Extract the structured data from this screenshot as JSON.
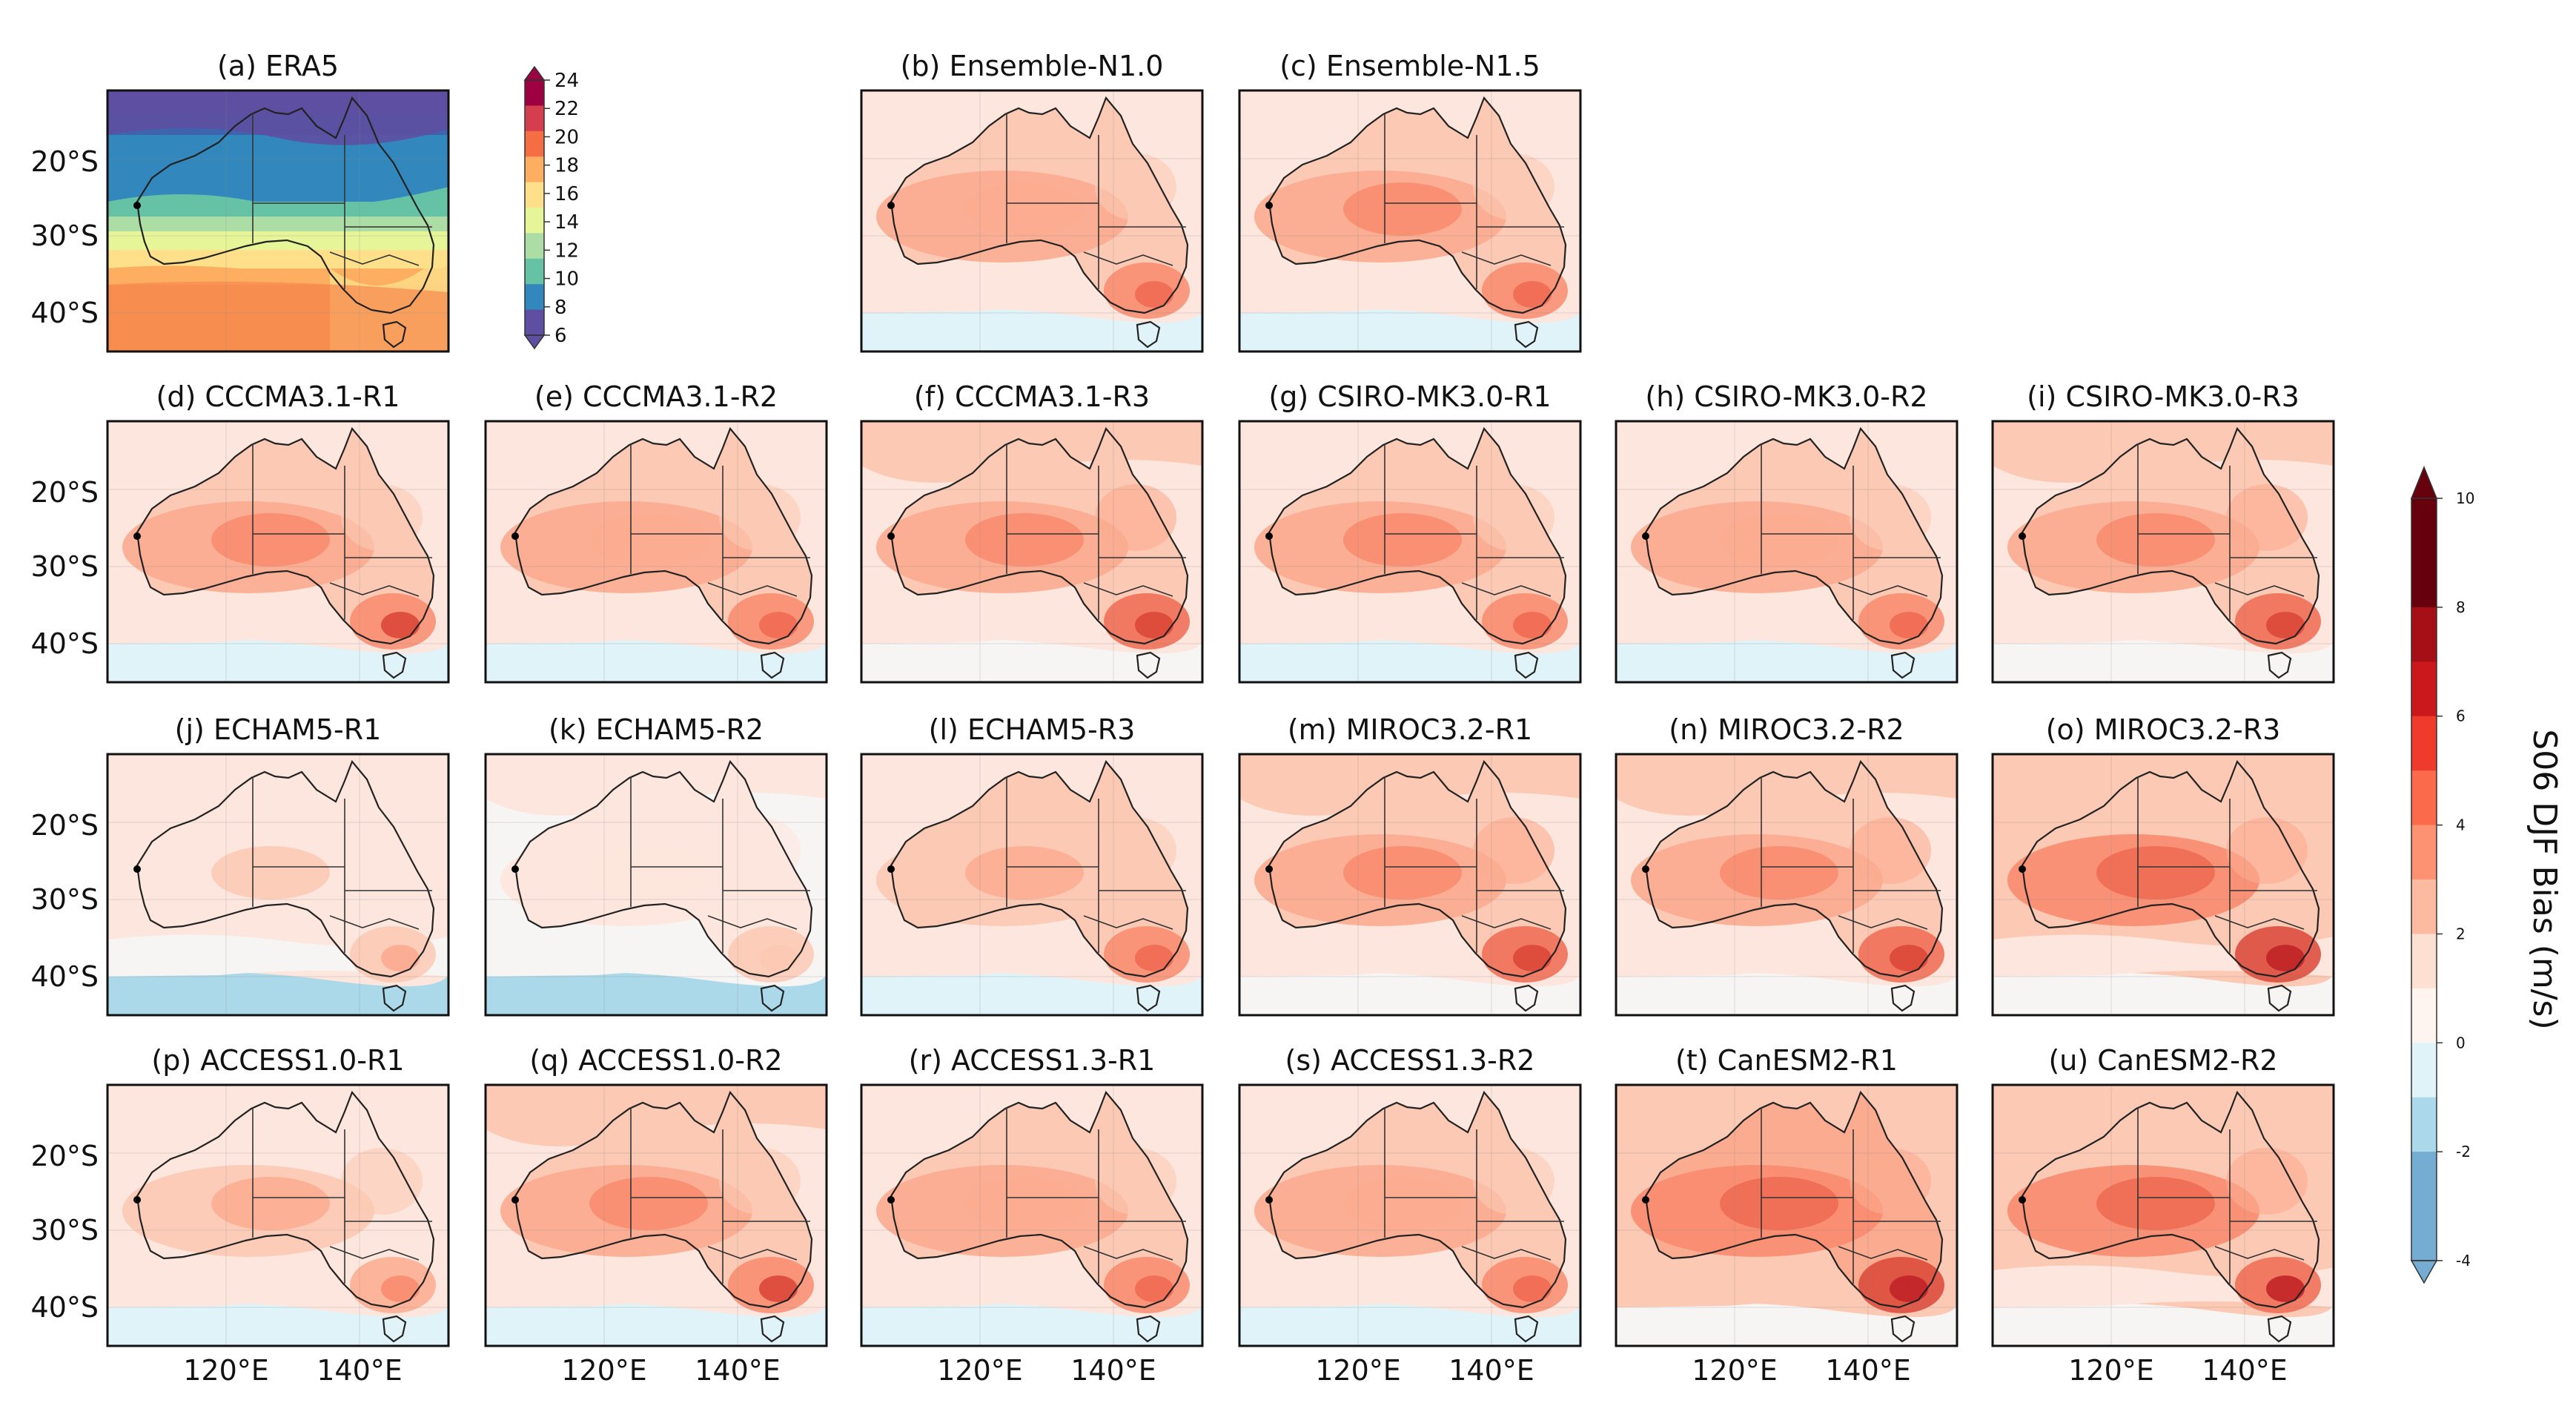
{
  "chart_data": {
    "type": "heatmap",
    "panels": [
      {
        "id": "a",
        "title": "(a) ERA5",
        "kind": "era5"
      },
      {
        "id": "b",
        "title": "(b) Ensemble-N1.0",
        "kind": "bias",
        "level": 3
      },
      {
        "id": "c",
        "title": "(c) Ensemble-N1.5",
        "kind": "bias",
        "level": 3.2
      },
      {
        "id": "d",
        "title": "(d) CCCMA3.1-R1",
        "kind": "bias",
        "level": 3.3
      },
      {
        "id": "e",
        "title": "(e) CCCMA3.1-R2",
        "kind": "bias",
        "level": 3.1
      },
      {
        "id": "f",
        "title": "(f) CCCMA3.1-R3",
        "kind": "bias",
        "level": 3.6
      },
      {
        "id": "g",
        "title": "(g) CSIRO-MK3.0-R1",
        "kind": "bias",
        "level": 3.2
      },
      {
        "id": "h",
        "title": "(h) CSIRO-MK3.0-R2",
        "kind": "bias",
        "level": 3.0
      },
      {
        "id": "i",
        "title": "(i) CSIRO-MK3.0-R3",
        "kind": "bias",
        "level": 3.8
      },
      {
        "id": "j",
        "title": "(j) ECHAM5-R1",
        "kind": "bias",
        "level": 1.6
      },
      {
        "id": "k",
        "title": "(k) ECHAM5-R2",
        "kind": "bias",
        "level": 1.2
      },
      {
        "id": "l",
        "title": "(l) ECHAM5-R3",
        "kind": "bias",
        "level": 2.8
      },
      {
        "id": "m",
        "title": "(m) MIROC3.2-R1",
        "kind": "bias",
        "level": 3.9
      },
      {
        "id": "n",
        "title": "(n) MIROC3.2-R2",
        "kind": "bias",
        "level": 3.6
      },
      {
        "id": "o",
        "title": "(o) MIROC3.2-R3",
        "kind": "bias",
        "level": 4.4
      },
      {
        "id": "p",
        "title": "(p) ACCESS1.0-R1",
        "kind": "bias",
        "level": 2.6
      },
      {
        "id": "q",
        "title": "(q) ACCESS1.0-R2",
        "kind": "bias",
        "level": 3.4
      },
      {
        "id": "r",
        "title": "(r) ACCESS1.3-R1",
        "kind": "bias",
        "level": 3.0
      },
      {
        "id": "s",
        "title": "(s) ACCESS1.3-R2",
        "kind": "bias",
        "level": 3.0
      },
      {
        "id": "t",
        "title": "(t) CanESM2-R1",
        "kind": "bias",
        "level": 4.6
      },
      {
        "id": "u",
        "title": "(u) CanESM2-R2",
        "kind": "bias",
        "level": 4.3
      }
    ],
    "lat_ticks": [
      "20°S",
      "30°S",
      "40°S"
    ],
    "lon_ticks": [
      "120°E",
      "140°E"
    ],
    "era5_colorbar": {
      "ticks": [
        24,
        22,
        20,
        18,
        16,
        14,
        12,
        10,
        8,
        6
      ],
      "colors": [
        "#9e0142",
        "#d53e4f",
        "#f46d43",
        "#fdae61",
        "#fee08b",
        "#e6f598",
        "#abdda4",
        "#66c2a5",
        "#3288bd",
        "#5e4fa2"
      ]
    },
    "bias_colorbar": {
      "label": "S06 DJF Bias (m/s)",
      "ticks": [
        10,
        8,
        6,
        4,
        2,
        0,
        -2,
        -4
      ],
      "colors": [
        "#67000d",
        "#a50f15",
        "#cb181d",
        "#ef3b2c",
        "#fb6a4a",
        "#fc9272",
        "#fcbba1",
        "#fee0d2",
        "#fff5f0",
        "#e0f3f8",
        "#abd9e9",
        "#74add1"
      ]
    }
  }
}
